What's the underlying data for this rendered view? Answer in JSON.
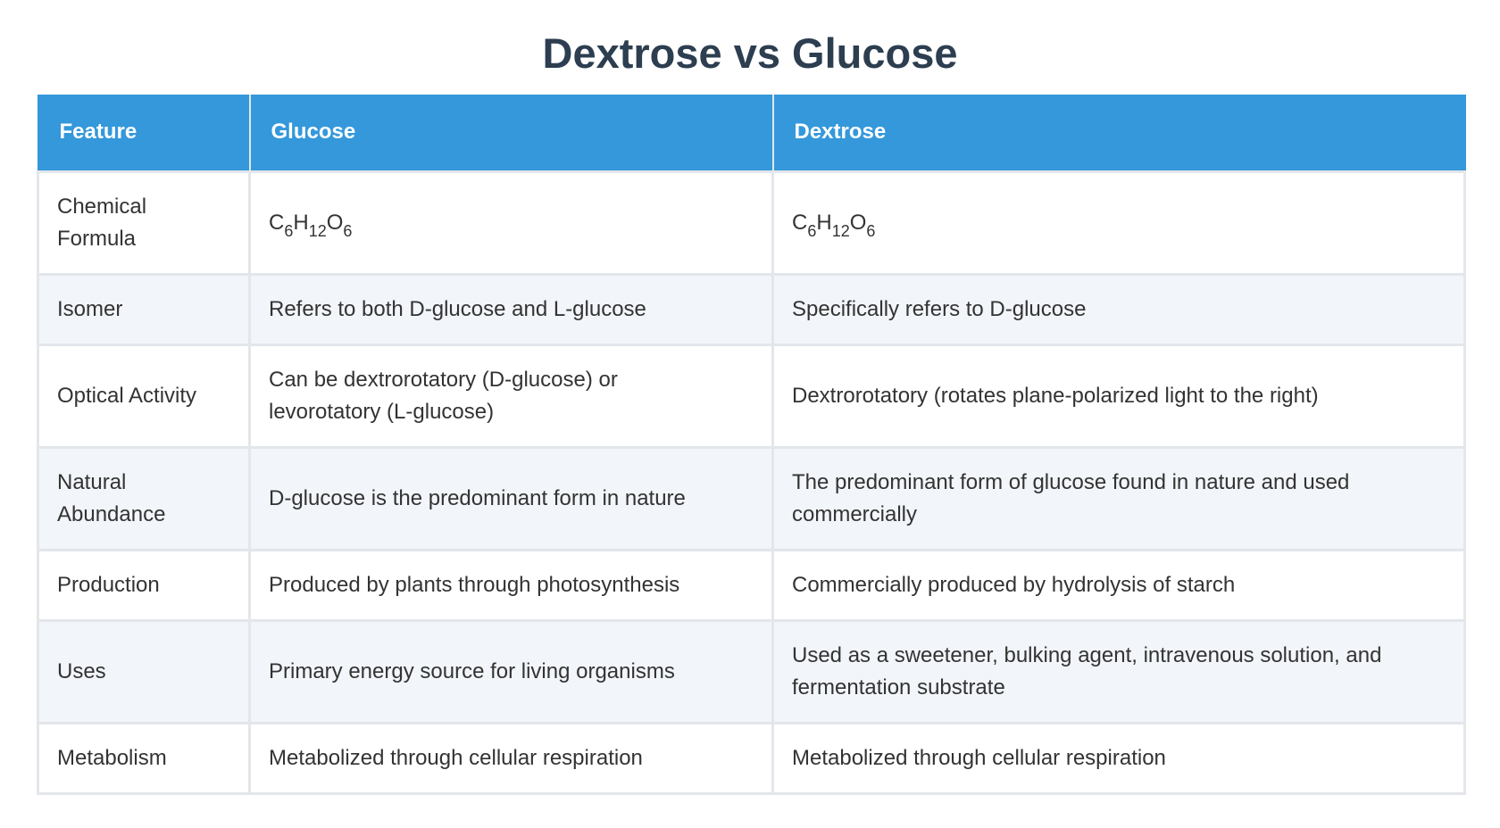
{
  "title": "Dextrose vs Glucose",
  "table": {
    "headers": [
      "Feature",
      "Glucose",
      "Dextrose"
    ],
    "rows": [
      {
        "feature": "Chemical Formula",
        "glucose": {
          "c": "C",
          "c_n": "6",
          "h": "H",
          "h_n": "12",
          "o": "O",
          "o_n": "6"
        },
        "dextrose": {
          "c": "C",
          "c_n": "6",
          "h": "H",
          "h_n": "12",
          "o": "O",
          "o_n": "6"
        }
      },
      {
        "feature": "Isomer",
        "glucose": "Refers to both D-glucose and L-glucose",
        "dextrose": "Specifically refers to D-glucose"
      },
      {
        "feature": "Optical Activity",
        "glucose": "Can be dextrorotatory (D-glucose) or levorotatory (L-glucose)",
        "dextrose": "Dextrorotatory (rotates plane-polarized light to the right)"
      },
      {
        "feature": "Natural Abundance",
        "glucose": "D-glucose is the predominant form in nature",
        "dextrose": "The predominant form of glucose found in nature and used commercially"
      },
      {
        "feature": "Production",
        "glucose": "Produced by plants through photosynthesis",
        "dextrose": "Commercially produced by hydrolysis of starch"
      },
      {
        "feature": "Uses",
        "glucose": "Primary energy source for living organisms",
        "dextrose": "Used as a sweetener, bulking agent, intravenous solution, and fermentation substrate"
      },
      {
        "feature": "Metabolism",
        "glucose": "Metabolized through cellular respiration",
        "dextrose": "Metabolized through cellular respiration"
      }
    ]
  },
  "colors": {
    "header_bg": "#3498db",
    "title": "#2c3e50",
    "row_alt": "#f2f5f9",
    "border": "#e3e6ea"
  }
}
